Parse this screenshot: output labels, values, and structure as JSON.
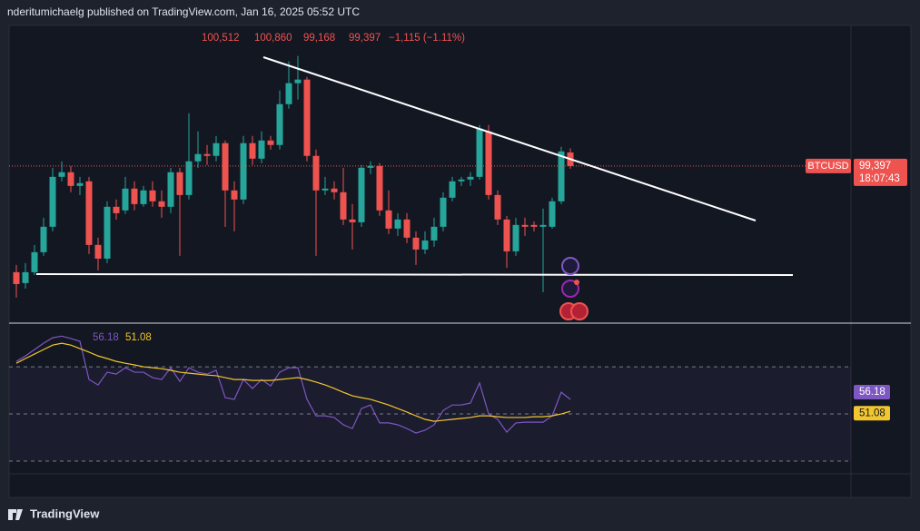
{
  "header": "nderitumichaelg published on TradingView.com, Jan 16, 2025 05:52 UTC",
  "brand": "TradingView",
  "chart_data": [
    {
      "type": "candlestick",
      "symbol": "BTCUSD",
      "ohlc_labels": [
        "100,512",
        "100,860",
        "99,168",
        "99,397"
      ],
      "change_label": "−1,115 (−1.11%)",
      "price_label": "99,397",
      "countdown": "18:07:43",
      "up_color": "#26a69a",
      "down_color": "#ef5350",
      "ylim": [
        86500,
        111000
      ],
      "open": [
        90630,
        89730,
        90630,
        92280,
        94380,
        98500,
        98880,
        97750,
        98130,
        92880,
        91750,
        96030,
        95730,
        97530,
        96250,
        97380,
        96480,
        96030,
        98880,
        97000,
        99780,
        100380,
        100230,
        101280,
        97380,
        96630,
        101280,
        100000,
        101500,
        101130,
        104500,
        106230,
        106530,
        100230,
        97380,
        97530,
        97230,
        94980,
        94750,
        99250,
        99400,
        95730,
        94230,
        94980,
        93480,
        92500,
        93250,
        94380,
        96780,
        98130,
        98280,
        98500,
        102250,
        97000,
        94980,
        92350,
        94530,
        94530,
        94380,
        94380,
        96480,
        100512
      ],
      "high": [
        91230,
        91380,
        92880,
        95130,
        99250,
        99780,
        99400,
        98500,
        98500,
        93480,
        96480,
        96630,
        98500,
        98130,
        97750,
        98130,
        97380,
        99250,
        99250,
        103750,
        102250,
        101130,
        101880,
        101500,
        98130,
        101880,
        101880,
        102250,
        101880,
        105630,
        108030,
        108480,
        106750,
        100750,
        98500,
        98130,
        99250,
        96250,
        99480,
        99780,
        99630,
        97380,
        95500,
        95500,
        94000,
        94000,
        95130,
        97230,
        98500,
        98500,
        98880,
        102780,
        102780,
        97380,
        95280,
        95130,
        95130,
        94830,
        95880,
        96780,
        100980,
        100860
      ],
      "low": [
        88530,
        89280,
        90400,
        91980,
        94000,
        98130,
        97230,
        97000,
        92130,
        90780,
        91380,
        94980,
        95430,
        95730,
        96030,
        96030,
        95130,
        95500,
        91980,
        96630,
        99250,
        99480,
        99780,
        94380,
        94000,
        96250,
        99480,
        99630,
        100750,
        100750,
        104130,
        104880,
        99780,
        91980,
        97000,
        96630,
        94530,
        92500,
        94380,
        98730,
        95280,
        93780,
        93630,
        93030,
        91230,
        92130,
        92730,
        94000,
        96480,
        97750,
        97750,
        98280,
        96630,
        94530,
        91000,
        91980,
        93630,
        94000,
        88980,
        94230,
        96250,
        99168
      ],
      "close": [
        89650,
        90630,
        92280,
        94380,
        98500,
        98880,
        97750,
        97980,
        92880,
        91750,
        96030,
        95500,
        97530,
        96250,
        97380,
        96480,
        96030,
        98880,
        97000,
        99780,
        100380,
        100230,
        101280,
        97380,
        96630,
        101280,
        100000,
        101500,
        101130,
        104500,
        106230,
        106530,
        100230,
        97380,
        97530,
        97230,
        94980,
        94750,
        99250,
        99400,
        95730,
        94230,
        94980,
        93480,
        92500,
        93250,
        94380,
        96780,
        98130,
        98280,
        98500,
        102480,
        97000,
        94980,
        92350,
        94530,
        94380,
        94380,
        94530,
        96480,
        100600,
        99397
      ]
    },
    {
      "type": "line",
      "ylim": [
        14.6,
        86.2
      ],
      "bands": [
        70,
        50,
        30
      ],
      "series": [
        {
          "color": "#7e57c2",
          "values": [
            72.3,
            74.6,
            77.3,
            80,
            82.3,
            83,
            82,
            80.8,
            64.6,
            62.3,
            67.7,
            66.9,
            69.6,
            67.7,
            67.7,
            65.4,
            64.6,
            69.6,
            63.8,
            69.6,
            67.7,
            66.9,
            68.5,
            56.9,
            56.2,
            64.6,
            60.8,
            64.6,
            61.9,
            67.7,
            69.6,
            69.6,
            56.2,
            49.2,
            49.2,
            48.5,
            45.4,
            43.8,
            52.3,
            53.8,
            46.2,
            46.2,
            45.4,
            43.8,
            41.9,
            43.1,
            45.4,
            51.5,
            53.8,
            53.8,
            54.6,
            63.1,
            50,
            47.7,
            42.3,
            46.2,
            46.5,
            46.5,
            46.5,
            49.2,
            59.2,
            56.18
          ]
        },
        {
          "color": "#f2c62f",
          "values": [
            71.5,
            73.5,
            75.4,
            77.3,
            79.2,
            80,
            79.2,
            77.7,
            76.2,
            74.6,
            73.5,
            72.3,
            71.5,
            70.8,
            70,
            69.6,
            69.2,
            68.5,
            67.7,
            67.3,
            66.9,
            66.5,
            66.2,
            65.4,
            64.6,
            64.6,
            64.2,
            64.2,
            64.2,
            64.6,
            65,
            65.4,
            64.6,
            63.5,
            62.3,
            60.8,
            59.2,
            57.7,
            56.9,
            56.2,
            55,
            53.8,
            52.3,
            50.8,
            49.2,
            47.7,
            46.9,
            47.3,
            47.7,
            48.1,
            48.5,
            49.2,
            49.2,
            48.8,
            48.5,
            48.5,
            48.5,
            48.8,
            48.8,
            49.2,
            50,
            51.08
          ]
        }
      ]
    }
  ]
}
